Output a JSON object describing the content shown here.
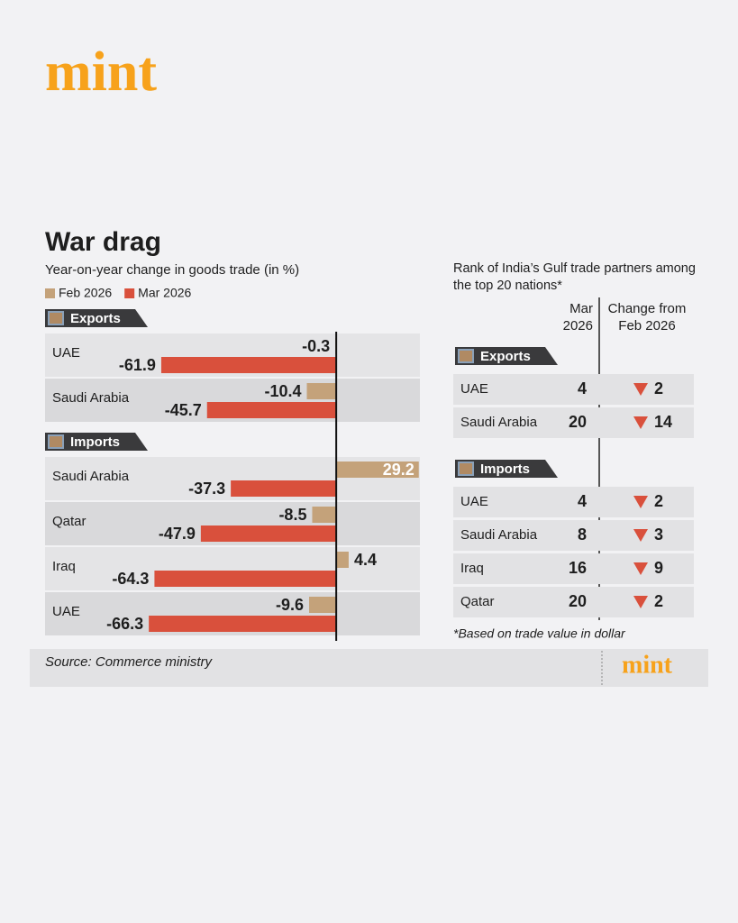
{
  "header": {
    "logo": "mint"
  },
  "chart_data": {
    "type": "bar",
    "orientation": "horizontal",
    "title": "War drag",
    "subtitle": "Year-on-year change in goods trade (in %)",
    "sections": [
      {
        "label": "Exports",
        "categories": [
          "UAE",
          "Saudi Arabia"
        ]
      },
      {
        "label": "Imports",
        "categories": [
          "Saudi Arabia",
          "Qatar",
          "Iraq",
          "UAE"
        ]
      }
    ],
    "series": [
      {
        "name": "Feb 2026",
        "color": "#c4a27a",
        "values": [
          -0.3,
          -10.4,
          29.2,
          -8.5,
          4.4,
          -9.6
        ]
      },
      {
        "name": "Mar 2026",
        "color": "#d9503c",
        "values": [
          -61.9,
          -45.7,
          -37.3,
          -47.9,
          -64.3,
          -66.3
        ]
      }
    ],
    "xlim": [
      -103,
      29.6
    ]
  },
  "rank_table": {
    "title": "Rank of India’s Gulf trade partners among the top 20 nations*",
    "columns": [
      "Mar 2026",
      "Change from Feb 2026"
    ],
    "sections": [
      {
        "label": "Exports",
        "rows": [
          {
            "name": "UAE",
            "rank": 4,
            "change": 2
          },
          {
            "name": "Saudi Arabia",
            "rank": 20,
            "change": 14
          }
        ]
      },
      {
        "label": "Imports",
        "rows": [
          {
            "name": "UAE",
            "rank": 4,
            "change": 2
          },
          {
            "name": "Saudi Arabia",
            "rank": 8,
            "change": 3
          },
          {
            "name": "Iraq",
            "rank": 16,
            "change": 9
          },
          {
            "name": "Qatar",
            "rank": 20,
            "change": 2
          }
        ]
      }
    ],
    "footnote": "*Based on trade value in dollar"
  },
  "footer": {
    "source": "Source: Commerce ministry",
    "logo": "mint"
  }
}
